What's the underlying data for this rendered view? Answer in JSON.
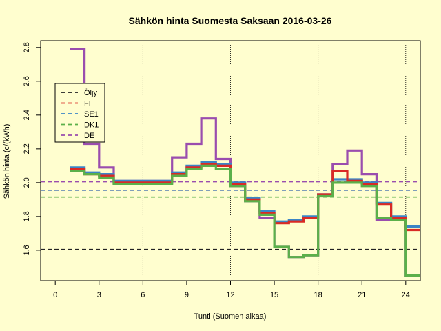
{
  "chart_data": {
    "type": "line",
    "title": "Sähkön hinta Suomesta Saksaan 2016-03-26",
    "xlabel": "Tunti (Suomen aikaa)",
    "ylabel": "Sähkön hinta (c/(kWh)",
    "xlim": [
      -1,
      25
    ],
    "ylim": [
      1.42,
      2.84
    ],
    "x_ticks": [
      0,
      3,
      6,
      9,
      12,
      15,
      18,
      21,
      24
    ],
    "y_ticks": [
      1.6,
      1.8,
      2.0,
      2.2,
      2.4,
      2.6,
      2.8
    ],
    "y_tick_labels": [
      "1.6",
      "1.8",
      "2.0",
      "2.2",
      "2.4",
      "2.6",
      "2.8"
    ],
    "vlines": [
      6,
      12,
      18,
      24
    ],
    "legend_position": "top-left",
    "hours": [
      1,
      2,
      3,
      4,
      5,
      6,
      7,
      8,
      9,
      10,
      11,
      12,
      13,
      14,
      15,
      16,
      17,
      18,
      19,
      20,
      21,
      22,
      23,
      24,
      25
    ],
    "series": [
      {
        "name": "DE",
        "color": "#9a4dae",
        "kind": "step",
        "values": [
          2.79,
          2.23,
          2.09,
          2.01,
          2.01,
          2.01,
          2.01,
          2.15,
          2.23,
          2.38,
          2.14,
          1.98,
          1.89,
          1.79,
          1.62,
          1.56,
          1.57,
          1.93,
          2.11,
          2.19,
          2.05,
          1.78,
          1.78,
          1.45
        ]
      },
      {
        "name": "SE1",
        "color": "#3b85c6",
        "kind": "step",
        "values": [
          2.09,
          2.06,
          2.05,
          2.01,
          2.01,
          2.01,
          2.01,
          2.06,
          2.1,
          2.12,
          2.11,
          2.0,
          1.91,
          1.83,
          1.77,
          1.78,
          1.8,
          1.93,
          2.02,
          2.02,
          2.0,
          1.88,
          1.8,
          1.74
        ]
      },
      {
        "name": "FI",
        "color": "#d92a25",
        "kind": "step",
        "values": [
          2.08,
          2.05,
          2.04,
          2.0,
          2.0,
          2.0,
          2.0,
          2.05,
          2.09,
          2.11,
          2.1,
          1.99,
          1.9,
          1.82,
          1.76,
          1.77,
          1.79,
          1.93,
          2.07,
          2.01,
          1.99,
          1.87,
          1.79,
          1.72
        ]
      },
      {
        "name": "DK1",
        "color": "#5bb04a",
        "kind": "step",
        "values": [
          2.07,
          2.05,
          2.03,
          1.99,
          1.99,
          1.99,
          1.99,
          2.04,
          2.08,
          2.1,
          2.08,
          1.98,
          1.89,
          1.81,
          1.62,
          1.56,
          1.57,
          1.92,
          2.0,
          2.0,
          1.98,
          1.79,
          1.78,
          1.45
        ]
      },
      {
        "name": "Öljy",
        "color": "#222222",
        "kind": "hline",
        "value": 1.605
      },
      {
        "name": "FI",
        "color": "#d92a25",
        "kind": "hline",
        "value": 1.955
      },
      {
        "name": "SE1",
        "color": "#3b85c6",
        "kind": "hline",
        "value": 1.955
      },
      {
        "name": "DK1",
        "color": "#5bb04a",
        "kind": "hline",
        "value": 1.915
      },
      {
        "name": "DE",
        "color": "#9a4dae",
        "kind": "hline",
        "value": 2.005
      }
    ],
    "legend": [
      {
        "label": "Öljy",
        "color": "#222222"
      },
      {
        "label": "FI",
        "color": "#d92a25"
      },
      {
        "label": "SE1",
        "color": "#3b85c6"
      },
      {
        "label": "DK1",
        "color": "#5bb04a"
      },
      {
        "label": "DE",
        "color": "#9a4dae"
      }
    ]
  }
}
